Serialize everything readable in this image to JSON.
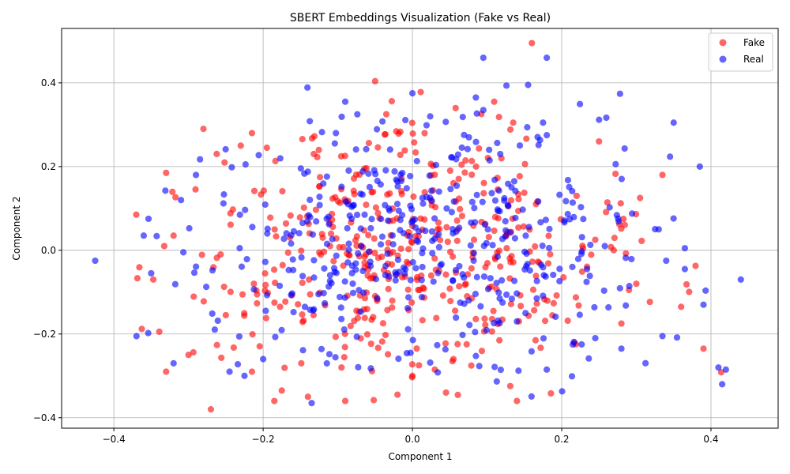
{
  "chart_data": {
    "type": "scatter",
    "title": "SBERT Embeddings Visualization (Fake vs Real)",
    "xlabel": "Component 1",
    "ylabel": "Component 2",
    "xlim": [
      -0.47,
      0.49
    ],
    "ylim": [
      -0.425,
      0.53
    ],
    "x_ticks": [
      -0.4,
      -0.2,
      0.0,
      0.2,
      0.4
    ],
    "x_tick_labels": [
      "−0.4",
      "−0.2",
      "0.0",
      "0.2",
      "0.4"
    ],
    "y_ticks": [
      -0.4,
      -0.2,
      0.0,
      0.2,
      0.4
    ],
    "y_tick_labels": [
      "−0.4",
      "−0.2",
      "0.0",
      "0.2",
      "0.4"
    ],
    "grid": true,
    "legend_position": "top-right",
    "point_count_per_series": 480,
    "series": [
      {
        "name": "Fake",
        "color": "#ff0000",
        "opacity": 0.6,
        "x_mean": -0.02,
        "y_mean": -0.005,
        "x_std": 0.15,
        "y_std": 0.15,
        "points": [
          [
            -0.27,
            -0.38
          ],
          [
            -0.175,
            -0.335
          ],
          [
            -0.14,
            -0.35
          ],
          [
            0.045,
            -0.34
          ],
          [
            -0.215,
            -0.29
          ],
          [
            -0.33,
            -0.29
          ],
          [
            0.39,
            -0.235
          ],
          [
            0.36,
            -0.135
          ],
          [
            0.16,
            0.495
          ],
          [
            0.135,
            0.305
          ],
          [
            -0.035,
            0.325
          ],
          [
            -0.28,
            0.29
          ],
          [
            -0.215,
            0.28
          ],
          [
            -0.23,
            0.25
          ],
          [
            -0.195,
            0.245
          ],
          [
            -0.33,
            0.185
          ],
          [
            0.22,
            0.13
          ],
          [
            0.245,
            0.025
          ],
          [
            0.055,
            -0.26
          ],
          [
            0.165,
            -0.215
          ],
          [
            -0.37,
            0.085
          ],
          [
            -0.32,
            0.035
          ],
          [
            -0.25,
            -0.155
          ],
          [
            -0.3,
            -0.25
          ],
          [
            -0.095,
            -0.28
          ],
          [
            0.25,
            0.26
          ],
          [
            0.28,
            -0.175
          ],
          [
            0.3,
            -0.08
          ],
          [
            0.335,
            0.18
          ],
          [
            0.14,
            -0.36
          ],
          [
            -0.185,
            -0.36
          ],
          [
            -0.09,
            -0.36
          ],
          [
            0.0,
            -0.3
          ],
          [
            -0.02,
            -0.345
          ],
          [
            0.03,
            -0.285
          ]
        ]
      },
      {
        "name": "Real",
        "color": "#0000ff",
        "opacity": 0.6,
        "x_mean": 0.01,
        "y_mean": 0.01,
        "x_std": 0.16,
        "y_std": 0.15,
        "points": [
          [
            0.18,
            0.46
          ],
          [
            0.095,
            0.46
          ],
          [
            0.35,
            0.305
          ],
          [
            0.44,
            -0.07
          ],
          [
            0.42,
            -0.285
          ],
          [
            0.415,
            -0.32
          ],
          [
            0.41,
            -0.28
          ],
          [
            0.39,
            -0.13
          ],
          [
            0.385,
            0.2
          ],
          [
            -0.425,
            -0.025
          ],
          [
            0.33,
            0.05
          ],
          [
            0.365,
            0.005
          ],
          [
            0.365,
            -0.045
          ],
          [
            0.34,
            -0.025
          ],
          [
            0.335,
            -0.205
          ],
          [
            0.28,
            -0.235
          ],
          [
            0.245,
            -0.21
          ],
          [
            0.18,
            -0.285
          ],
          [
            0.14,
            -0.17
          ],
          [
            -0.09,
            0.355
          ],
          [
            0.085,
            0.365
          ],
          [
            0.095,
            0.335
          ],
          [
            0.0,
            0.375
          ],
          [
            0.18,
            0.275
          ],
          [
            -0.135,
            -0.365
          ],
          [
            -0.2,
            -0.26
          ],
          [
            -0.225,
            -0.3
          ],
          [
            -0.245,
            -0.29
          ],
          [
            -0.32,
            -0.27
          ],
          [
            -0.35,
            -0.055
          ],
          [
            -0.36,
            0.035
          ],
          [
            -0.31,
            0.12
          ],
          [
            -0.29,
            0.18
          ],
          [
            0.175,
            0.305
          ],
          [
            0.155,
            0.395
          ]
        ]
      }
    ]
  }
}
